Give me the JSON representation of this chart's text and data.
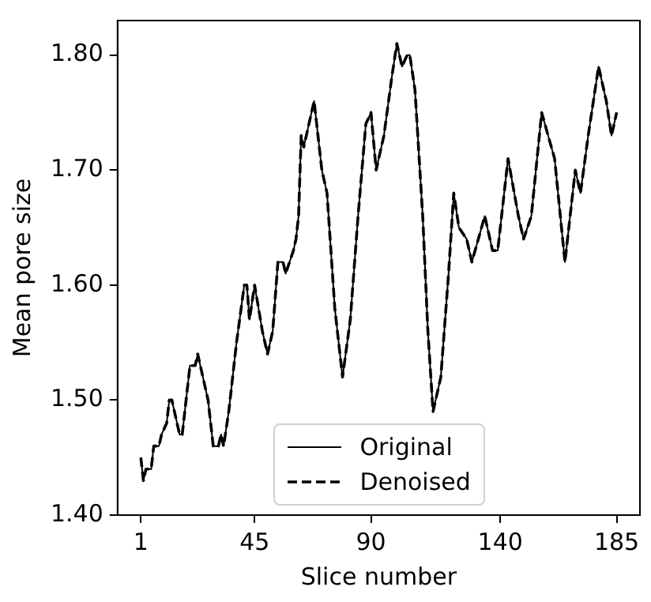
{
  "chart_data": {
    "type": "line",
    "xlabel": "Slice number",
    "ylabel": "Mean pore size",
    "xlim": [
      -8,
      194
    ],
    "ylim": [
      1.4,
      1.83
    ],
    "xticks": [
      1,
      45,
      90,
      140,
      185
    ],
    "yticks": [
      {
        "value": 1.4,
        "label": "1.40"
      },
      {
        "value": 1.5,
        "label": "1.50"
      },
      {
        "value": 1.6,
        "label": "1.60"
      },
      {
        "value": 1.7,
        "label": "1.70"
      },
      {
        "value": 1.8,
        "label": "1.80"
      }
    ],
    "grid": false,
    "legend": "bottom",
    "marker": "none",
    "x": [
      1,
      2,
      3,
      5,
      6,
      8,
      9,
      11,
      12,
      13,
      16,
      17,
      20,
      22,
      23,
      25,
      27,
      29,
      31,
      32,
      33,
      35,
      38,
      41,
      42,
      43,
      45,
      48,
      50,
      52,
      54,
      56,
      57,
      60,
      61,
      62,
      63,
      64,
      66,
      68,
      71,
      73,
      76,
      79,
      82,
      85,
      88,
      90,
      92,
      95,
      98,
      100,
      102,
      104,
      105,
      107,
      110,
      112,
      114,
      117,
      120,
      122,
      124,
      127,
      129,
      134,
      137,
      139,
      143,
      147,
      149,
      152,
      156,
      161,
      165,
      169,
      171,
      174,
      178,
      181,
      183,
      185
    ],
    "series": [
      {
        "name": "Original",
        "color": "#000000",
        "line_style": "solid",
        "values": [
          1.45,
          1.43,
          1.44,
          1.44,
          1.46,
          1.46,
          1.47,
          1.48,
          1.5,
          1.5,
          1.47,
          1.47,
          1.53,
          1.53,
          1.54,
          1.52,
          1.5,
          1.46,
          1.46,
          1.47,
          1.46,
          1.49,
          1.55,
          1.6,
          1.6,
          1.57,
          1.6,
          1.56,
          1.54,
          1.56,
          1.62,
          1.62,
          1.61,
          1.63,
          1.64,
          1.66,
          1.73,
          1.72,
          1.74,
          1.76,
          1.7,
          1.68,
          1.58,
          1.52,
          1.57,
          1.66,
          1.74,
          1.75,
          1.7,
          1.73,
          1.78,
          1.81,
          1.79,
          1.8,
          1.8,
          1.77,
          1.66,
          1.56,
          1.49,
          1.52,
          1.61,
          1.68,
          1.65,
          1.64,
          1.62,
          1.66,
          1.63,
          1.63,
          1.71,
          1.66,
          1.64,
          1.66,
          1.75,
          1.71,
          1.62,
          1.7,
          1.68,
          1.73,
          1.79,
          1.76,
          1.73,
          1.75
        ]
      },
      {
        "name": "Denoised",
        "color": "#000000",
        "line_style": "dashed",
        "values": [
          1.45,
          1.43,
          1.44,
          1.44,
          1.46,
          1.46,
          1.47,
          1.48,
          1.5,
          1.5,
          1.47,
          1.47,
          1.53,
          1.53,
          1.54,
          1.52,
          1.5,
          1.46,
          1.46,
          1.47,
          1.46,
          1.49,
          1.55,
          1.6,
          1.6,
          1.57,
          1.6,
          1.56,
          1.54,
          1.56,
          1.62,
          1.62,
          1.61,
          1.63,
          1.64,
          1.66,
          1.73,
          1.72,
          1.74,
          1.76,
          1.7,
          1.68,
          1.58,
          1.52,
          1.57,
          1.66,
          1.74,
          1.75,
          1.7,
          1.73,
          1.78,
          1.81,
          1.79,
          1.8,
          1.8,
          1.77,
          1.66,
          1.56,
          1.49,
          1.52,
          1.61,
          1.68,
          1.65,
          1.64,
          1.62,
          1.66,
          1.63,
          1.63,
          1.71,
          1.66,
          1.64,
          1.66,
          1.75,
          1.71,
          1.62,
          1.7,
          1.68,
          1.73,
          1.79,
          1.76,
          1.73,
          1.75
        ]
      }
    ]
  }
}
